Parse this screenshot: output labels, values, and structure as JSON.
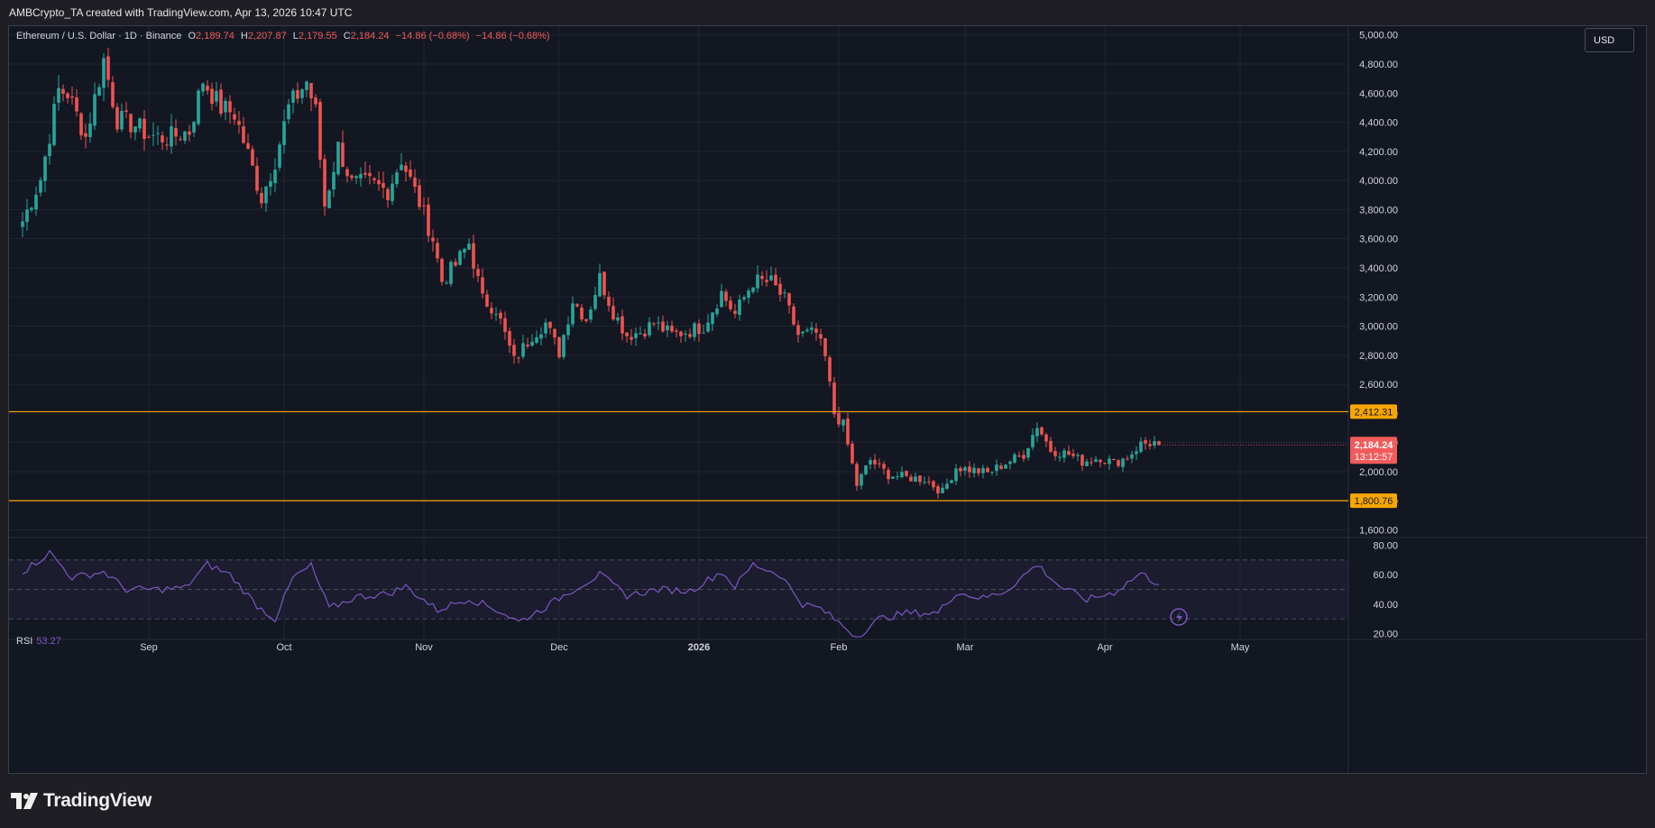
{
  "header": {
    "attribution": "AMBCrypto_TA created with TradingView.com, Apr 13, 2026 10:47 UTC"
  },
  "legend": {
    "symbol": "Ethereum / U.S. Dollar · 1D · Binance",
    "open_label": "O",
    "open": "2,189.74",
    "high_label": "H",
    "high": "2,207.87",
    "low_label": "L",
    "low": "2,179.55",
    "close_label": "C",
    "close": "2,184.24",
    "change": "−14.86 (−0.68%)",
    "change2": "−14.86 (−0.68%)"
  },
  "currency_button": "USD",
  "rsi": {
    "label": "RSI",
    "value": "53.27"
  },
  "footer": {
    "brand": "TradingView"
  },
  "colors": {
    "up": "#26a69a",
    "down": "#ef5350",
    "level": "#f7a600",
    "rsi_line": "#7e57c2",
    "price_tag": "#f15b5b"
  },
  "chart_data": [
    {
      "type": "candlestick",
      "x_ticks": [
        "Sep",
        "Oct",
        "Nov",
        "Dec",
        "2026",
        "Feb",
        "Mar",
        "Apr",
        "May"
      ],
      "y_ticks": [
        "1,600.00",
        "1,800.00",
        "2,000.00",
        "2,200.00",
        "2,400.00",
        "2,600.00",
        "2,800.00",
        "3,000.00",
        "3,200.00",
        "3,400.00",
        "3,600.00",
        "3,800.00",
        "4,000.00",
        "4,200.00",
        "4,400.00",
        "4,600.00",
        "4,800.00",
        "5,000.00"
      ],
      "ylim": [
        1560,
        5060
      ],
      "horizontal_levels": [
        {
          "value": 2412.31,
          "label": "2,412.31"
        },
        {
          "value": 1800.76,
          "label": "1,800.76"
        }
      ],
      "last_price": {
        "value": 2184.24,
        "label": "2,184.24",
        "countdown": "13:12:57"
      },
      "series": [
        {
          "date": "2025-08-04",
          "close": 3720
        },
        {
          "date": "2025-08-08",
          "close": 4010
        },
        {
          "date": "2025-08-12",
          "close": 4620
        },
        {
          "date": "2025-08-14",
          "close": 4600
        },
        {
          "date": "2025-08-18",
          "close": 4300
        },
        {
          "date": "2025-08-22",
          "close": 4830
        },
        {
          "date": "2025-08-25",
          "close": 4420
        },
        {
          "date": "2025-08-29",
          "close": 4380
        },
        {
          "date": "2025-09-01",
          "close": 4310
        },
        {
          "date": "2025-09-05",
          "close": 4290
        },
        {
          "date": "2025-09-10",
          "close": 4340
        },
        {
          "date": "2025-09-13",
          "close": 4690
        },
        {
          "date": "2025-09-17",
          "close": 4500
        },
        {
          "date": "2025-09-20",
          "close": 4460
        },
        {
          "date": "2025-09-23",
          "close": 4180
        },
        {
          "date": "2025-09-26",
          "close": 3880
        },
        {
          "date": "2025-09-29",
          "close": 4140
        },
        {
          "date": "2025-10-02",
          "close": 4500
        },
        {
          "date": "2025-10-06",
          "close": 4680
        },
        {
          "date": "2025-10-08",
          "close": 4470
        },
        {
          "date": "2025-10-10",
          "close": 3830
        },
        {
          "date": "2025-10-13",
          "close": 4230
        },
        {
          "date": "2025-10-16",
          "close": 3980
        },
        {
          "date": "2025-10-20",
          "close": 3980
        },
        {
          "date": "2025-10-24",
          "close": 3930
        },
        {
          "date": "2025-10-27",
          "close": 4150
        },
        {
          "date": "2025-10-31",
          "close": 3850
        },
        {
          "date": "2025-11-03",
          "close": 3600
        },
        {
          "date": "2025-11-05",
          "close": 3310
        },
        {
          "date": "2025-11-08",
          "close": 3420
        },
        {
          "date": "2025-11-11",
          "close": 3570
        },
        {
          "date": "2025-11-14",
          "close": 3180
        },
        {
          "date": "2025-11-17",
          "close": 3120
        },
        {
          "date": "2025-11-21",
          "close": 2760
        },
        {
          "date": "2025-11-25",
          "close": 2940
        },
        {
          "date": "2025-11-28",
          "close": 3020
        },
        {
          "date": "2025-12-01",
          "close": 2820
        },
        {
          "date": "2025-12-04",
          "close": 3180
        },
        {
          "date": "2025-12-07",
          "close": 3050
        },
        {
          "date": "2025-12-10",
          "close": 3330
        },
        {
          "date": "2025-12-13",
          "close": 3100
        },
        {
          "date": "2025-12-16",
          "close": 2940
        },
        {
          "date": "2025-12-19",
          "close": 2960
        },
        {
          "date": "2025-12-22",
          "close": 3020
        },
        {
          "date": "2025-12-26",
          "close": 2940
        },
        {
          "date": "2025-12-30",
          "close": 2970
        },
        {
          "date": "2026-01-02",
          "close": 3000
        },
        {
          "date": "2026-01-06",
          "close": 3230
        },
        {
          "date": "2026-01-09",
          "close": 3080
        },
        {
          "date": "2026-01-13",
          "close": 3310
        },
        {
          "date": "2026-01-17",
          "close": 3300
        },
        {
          "date": "2026-01-20",
          "close": 3180
        },
        {
          "date": "2026-01-23",
          "close": 2940
        },
        {
          "date": "2026-01-27",
          "close": 2950
        },
        {
          "date": "2026-01-29",
          "close": 2780
        },
        {
          "date": "2026-01-31",
          "close": 2400
        },
        {
          "date": "2026-02-02",
          "close": 2320
        },
        {
          "date": "2026-02-05",
          "close": 1910
        },
        {
          "date": "2026-02-08",
          "close": 2080
        },
        {
          "date": "2026-02-12",
          "close": 1980
        },
        {
          "date": "2026-02-16",
          "close": 1960
        },
        {
          "date": "2026-02-20",
          "close": 1950
        },
        {
          "date": "2026-02-24",
          "close": 1860
        },
        {
          "date": "2026-02-27",
          "close": 2030
        },
        {
          "date": "2026-03-03",
          "close": 2010
        },
        {
          "date": "2026-03-06",
          "close": 1990
        },
        {
          "date": "2026-03-10",
          "close": 2060
        },
        {
          "date": "2026-03-14",
          "close": 2120
        },
        {
          "date": "2026-03-17",
          "close": 2320
        },
        {
          "date": "2026-03-20",
          "close": 2150
        },
        {
          "date": "2026-03-24",
          "close": 2120
        },
        {
          "date": "2026-03-27",
          "close": 2070
        },
        {
          "date": "2026-03-31",
          "close": 2100
        },
        {
          "date": "2026-04-03",
          "close": 2060
        },
        {
          "date": "2026-04-06",
          "close": 2100
        },
        {
          "date": "2026-04-09",
          "close": 2190
        },
        {
          "date": "2026-04-12",
          "close": 2200
        },
        {
          "date": "2026-04-13",
          "close": 2184.24
        }
      ]
    },
    {
      "type": "line",
      "name": "RSI",
      "y_ticks": [
        "20.00",
        "40.00",
        "60.00",
        "80.00"
      ],
      "ylim": [
        16,
        84
      ],
      "bands": [
        30,
        50,
        70
      ],
      "series": [
        {
          "date": "2025-08-04",
          "value": 62
        },
        {
          "date": "2025-08-10",
          "value": 75
        },
        {
          "date": "2025-08-15",
          "value": 58
        },
        {
          "date": "2025-08-22",
          "value": 62
        },
        {
          "date": "2025-08-27",
          "value": 50
        },
        {
          "date": "2025-09-03",
          "value": 50
        },
        {
          "date": "2025-09-09",
          "value": 51
        },
        {
          "date": "2025-09-14",
          "value": 67
        },
        {
          "date": "2025-09-19",
          "value": 60
        },
        {
          "date": "2025-09-25",
          "value": 39
        },
        {
          "date": "2025-09-29",
          "value": 30
        },
        {
          "date": "2025-10-03",
          "value": 58
        },
        {
          "date": "2025-10-07",
          "value": 66
        },
        {
          "date": "2025-10-11",
          "value": 37
        },
        {
          "date": "2025-10-17",
          "value": 45
        },
        {
          "date": "2025-10-24",
          "value": 47
        },
        {
          "date": "2025-10-28",
          "value": 52
        },
        {
          "date": "2025-11-04",
          "value": 36
        },
        {
          "date": "2025-11-11",
          "value": 44
        },
        {
          "date": "2025-11-18",
          "value": 35
        },
        {
          "date": "2025-11-22",
          "value": 28
        },
        {
          "date": "2025-11-28",
          "value": 38
        },
        {
          "date": "2025-12-03",
          "value": 48
        },
        {
          "date": "2025-12-10",
          "value": 60
        },
        {
          "date": "2025-12-16",
          "value": 46
        },
        {
          "date": "2025-12-23",
          "value": 50
        },
        {
          "date": "2025-12-30",
          "value": 49
        },
        {
          "date": "2026-01-06",
          "value": 62
        },
        {
          "date": "2026-01-09",
          "value": 52
        },
        {
          "date": "2026-01-13",
          "value": 67
        },
        {
          "date": "2026-01-19",
          "value": 60
        },
        {
          "date": "2026-01-24",
          "value": 40
        },
        {
          "date": "2026-01-28",
          "value": 37
        },
        {
          "date": "2026-02-05",
          "value": 18
        },
        {
          "date": "2026-02-10",
          "value": 30
        },
        {
          "date": "2026-02-16",
          "value": 34
        },
        {
          "date": "2026-02-23",
          "value": 34
        },
        {
          "date": "2026-02-27",
          "value": 48
        },
        {
          "date": "2026-03-05",
          "value": 44
        },
        {
          "date": "2026-03-10",
          "value": 49
        },
        {
          "date": "2026-03-17",
          "value": 67
        },
        {
          "date": "2026-03-22",
          "value": 52
        },
        {
          "date": "2026-03-28",
          "value": 43
        },
        {
          "date": "2026-04-03",
          "value": 48
        },
        {
          "date": "2026-04-09",
          "value": 61
        },
        {
          "date": "2026-04-13",
          "value": 53.27
        }
      ]
    }
  ]
}
